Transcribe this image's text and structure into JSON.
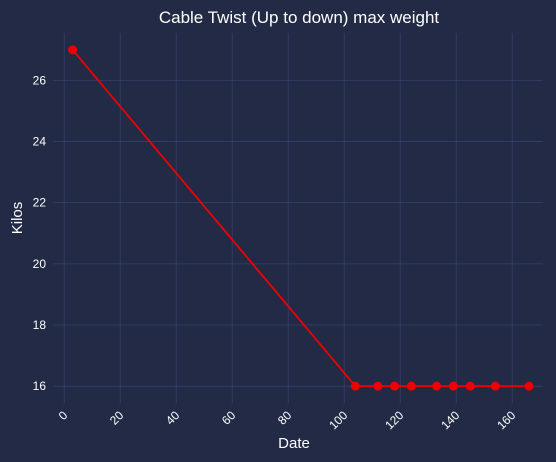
{
  "chart_data": {
    "type": "line",
    "title": "Cable Twist (Up to down) max weight",
    "xlabel": "Date",
    "ylabel": "Kilos",
    "xlim": [
      -4,
      171
    ],
    "ylim": [
      15.45,
      27.55
    ],
    "xticks": [
      "0",
      "20",
      "40",
      "60",
      "80",
      "100",
      "120",
      "140",
      "160"
    ],
    "yticks": [
      "16",
      "18",
      "20",
      "22",
      "24",
      "26"
    ],
    "grid": true,
    "series": [
      {
        "x": [
          3,
          104,
          112,
          118,
          124,
          133,
          139,
          145,
          154,
          166
        ],
        "y": [
          27,
          16,
          16,
          16,
          16,
          16,
          16,
          16,
          16,
          16
        ]
      }
    ],
    "colors": {
      "background": "#222a45",
      "grid": "#34406a",
      "line": "#ee0000",
      "text": "#ffffff"
    }
  }
}
